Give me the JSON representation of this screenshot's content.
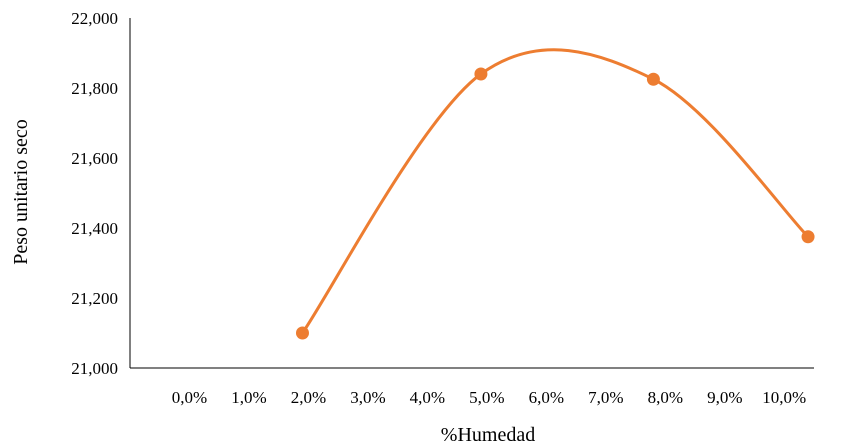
{
  "chart_data": {
    "type": "line",
    "title": "",
    "xlabel": "%Humedad",
    "ylabel": "Peso unitario seco",
    "x_ticks": [
      "0,0%",
      "1,0%",
      "2,0%",
      "3,0%",
      "4,0%",
      "5,0%",
      "6,0%",
      "7,0%",
      "8,0%",
      "9,0%",
      "10,0%"
    ],
    "y_ticks": [
      "21,000",
      "21,200",
      "21,400",
      "21,600",
      "21,800",
      "22,000"
    ],
    "xlim": [
      -1,
      10.5
    ],
    "ylim": [
      21000,
      22000
    ],
    "smooth": true,
    "grid": false,
    "series": [
      {
        "color": "#ED7D31",
        "points": [
          {
            "x": 1.9,
            "y": 21100
          },
          {
            "x": 4.9,
            "y": 21840
          },
          {
            "x": 7.8,
            "y": 21825
          },
          {
            "x": 10.4,
            "y": 21375
          }
        ]
      }
    ]
  }
}
